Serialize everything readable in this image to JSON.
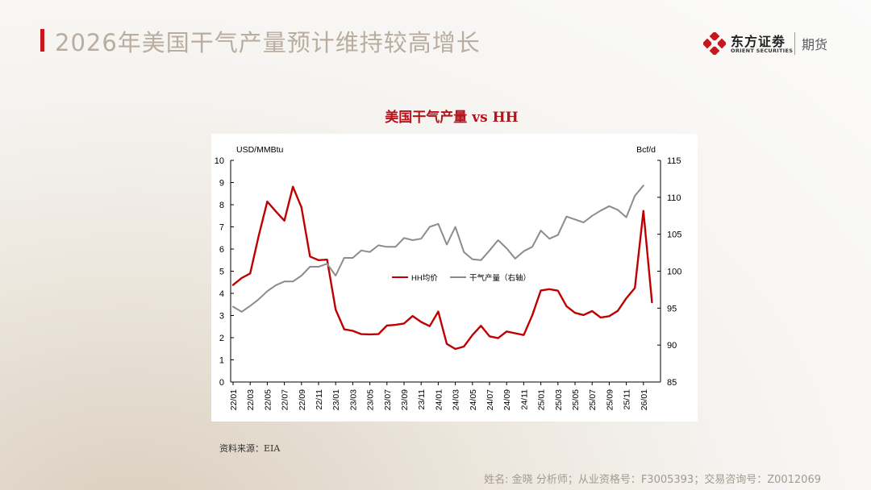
{
  "slide": {
    "title": "2026年美国干气产量预计维持较高增长",
    "source": "资料来源：EIA",
    "footer": "姓名: 金晓 分析师；从业资格号：F3005393；交易咨询号：Z0012069"
  },
  "brand": {
    "name": "东方证劵",
    "english": "ORIENT SECURITIES",
    "sub": "期货",
    "logo_color": "#c8161d"
  },
  "chart_data": {
    "type": "line",
    "title": "美国干气产量 vs HH",
    "left_axis_label": "USD/MMBtu",
    "right_axis_label": "Bcf/d",
    "left_ylim": [
      0,
      10
    ],
    "right_ylim": [
      85,
      115
    ],
    "left_ticks": [
      "0",
      "1",
      "2",
      "3",
      "4",
      "5",
      "6",
      "7",
      "8",
      "9",
      "10"
    ],
    "right_ticks": [
      "85",
      "90",
      "95",
      "100",
      "105",
      "110",
      "115"
    ],
    "x_tick_labels": [
      "22/01",
      "22/03",
      "22/05",
      "22/07",
      "22/09",
      "22/11",
      "23/01",
      "23/03",
      "23/05",
      "23/07",
      "23/09",
      "23/11",
      "24/01",
      "24/03",
      "24/05",
      "24/07",
      "24/09",
      "24/11",
      "25/01",
      "25/03",
      "25/05",
      "25/07",
      "25/09",
      "25/11",
      "26/01"
    ],
    "months": [
      "22/01",
      "22/02",
      "22/03",
      "22/04",
      "22/05",
      "22/06",
      "22/07",
      "22/08",
      "22/09",
      "22/10",
      "22/11",
      "22/12",
      "23/01",
      "23/02",
      "23/03",
      "23/04",
      "23/05",
      "23/06",
      "23/07",
      "23/08",
      "23/09",
      "23/10",
      "23/11",
      "23/12",
      "24/01",
      "24/02",
      "24/03",
      "24/04",
      "24/05",
      "24/06",
      "24/07",
      "24/08",
      "24/09",
      "24/10",
      "24/11",
      "24/12",
      "25/01",
      "25/02",
      "25/03",
      "25/04",
      "25/05",
      "25/06",
      "25/07",
      "25/08",
      "25/09",
      "25/10",
      "25/11",
      "25/12",
      "26/01",
      "26/02"
    ],
    "series": [
      {
        "name": "HH均价",
        "axis": "left",
        "color": "#c00000",
        "values": [
          4.38,
          4.69,
          4.9,
          6.6,
          8.14,
          7.7,
          7.28,
          8.81,
          7.88,
          5.66,
          5.5,
          5.52,
          3.27,
          2.38,
          2.31,
          2.16,
          2.15,
          2.16,
          2.55,
          2.58,
          2.64,
          2.98,
          2.71,
          2.52,
          3.18,
          1.72,
          1.49,
          1.6,
          2.12,
          2.54,
          2.06,
          1.98,
          2.28,
          2.2,
          2.12,
          3.01,
          4.13,
          4.19,
          4.12,
          3.42,
          3.12,
          3.02,
          3.2,
          2.91,
          2.97,
          3.21,
          3.78,
          4.24,
          7.72,
          3.6
        ]
      },
      {
        "name": "干气产量（右轴）",
        "axis": "right",
        "color": "#8c8c8c",
        "values": [
          95.2,
          94.5,
          95.3,
          96.2,
          97.3,
          98.1,
          98.6,
          98.6,
          99.4,
          100.6,
          100.6,
          101.0,
          99.4,
          101.8,
          101.8,
          102.8,
          102.6,
          103.5,
          103.3,
          103.3,
          104.5,
          104.2,
          104.4,
          106.0,
          106.4,
          103.6,
          106.0,
          102.6,
          101.6,
          101.5,
          102.8,
          104.2,
          103.1,
          101.7,
          102.7,
          103.3,
          105.5,
          104.4,
          104.9,
          107.4,
          107.0,
          106.6,
          107.5,
          108.2,
          108.8,
          108.3,
          107.3,
          110.2,
          111.6
        ]
      }
    ]
  }
}
